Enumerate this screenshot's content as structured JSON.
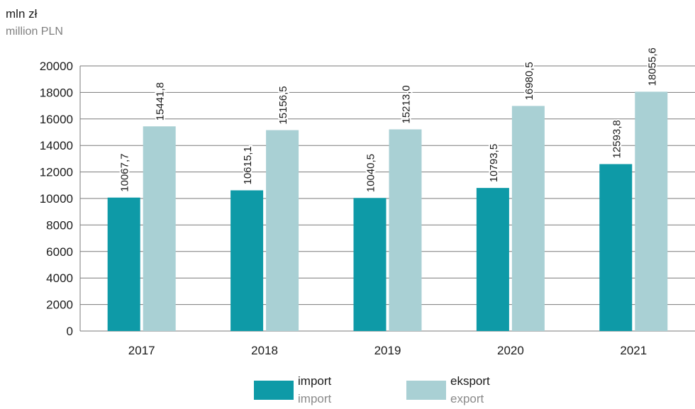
{
  "unit": {
    "pl": "mln zł",
    "en": "million PLN"
  },
  "legend": [
    {
      "label_pl": "import",
      "label_en": "import",
      "color": "#0e9aa7"
    },
    {
      "label_pl": "eksport",
      "label_en": "export",
      "color": "#a9d0d4"
    }
  ],
  "chart_data": {
    "type": "bar",
    "categories": [
      "2017",
      "2018",
      "2019",
      "2020",
      "2021"
    ],
    "series": [
      {
        "name": "import",
        "values": [
          10067.7,
          10615.1,
          10040.5,
          10793.5,
          12593.8
        ],
        "labels": [
          "10067,7",
          "10615,1",
          "10040,5",
          "10793,5",
          "12593,8"
        ]
      },
      {
        "name": "eksport",
        "values": [
          15441.8,
          15156.5,
          15213.0,
          16980.5,
          18055.6
        ],
        "labels": [
          "15441,8",
          "15156,5",
          "15213,0",
          "16980,5",
          "18055,6"
        ]
      }
    ],
    "ylim": [
      0,
      20000
    ],
    "yticks": [
      0,
      2000,
      4000,
      6000,
      8000,
      10000,
      12000,
      14000,
      16000,
      18000,
      20000
    ],
    "grid": true,
    "legend_position": "bottom"
  }
}
